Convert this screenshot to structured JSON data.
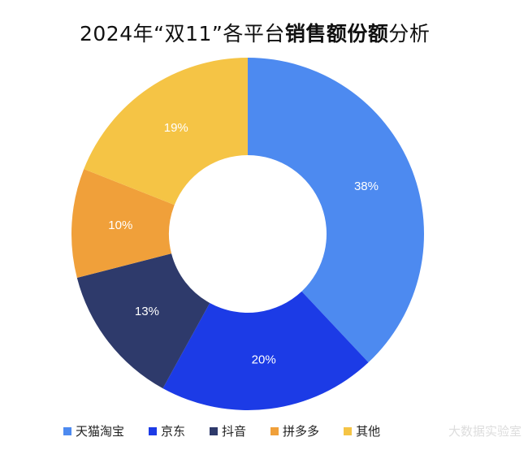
{
  "chart_data": {
    "type": "donut",
    "title_parts": [
      {
        "text": "2024年“双11”各平台",
        "bold": false
      },
      {
        "text": "销售额份额",
        "bold": true
      },
      {
        "text": "分析",
        "bold": false
      }
    ],
    "categories": [
      "天猫淘宝",
      "京东",
      "抖音",
      "拼多多",
      "其他"
    ],
    "values": [
      38,
      20,
      13,
      10,
      19
    ],
    "labels": [
      "38%",
      "20%",
      "13%",
      "10%",
      "19%"
    ],
    "colors": [
      "#4D8AF0",
      "#1C3BE6",
      "#2E3A6B",
      "#F0A03A",
      "#F5C445"
    ],
    "legend_position": "bottom"
  },
  "watermark": "大数据实验室"
}
